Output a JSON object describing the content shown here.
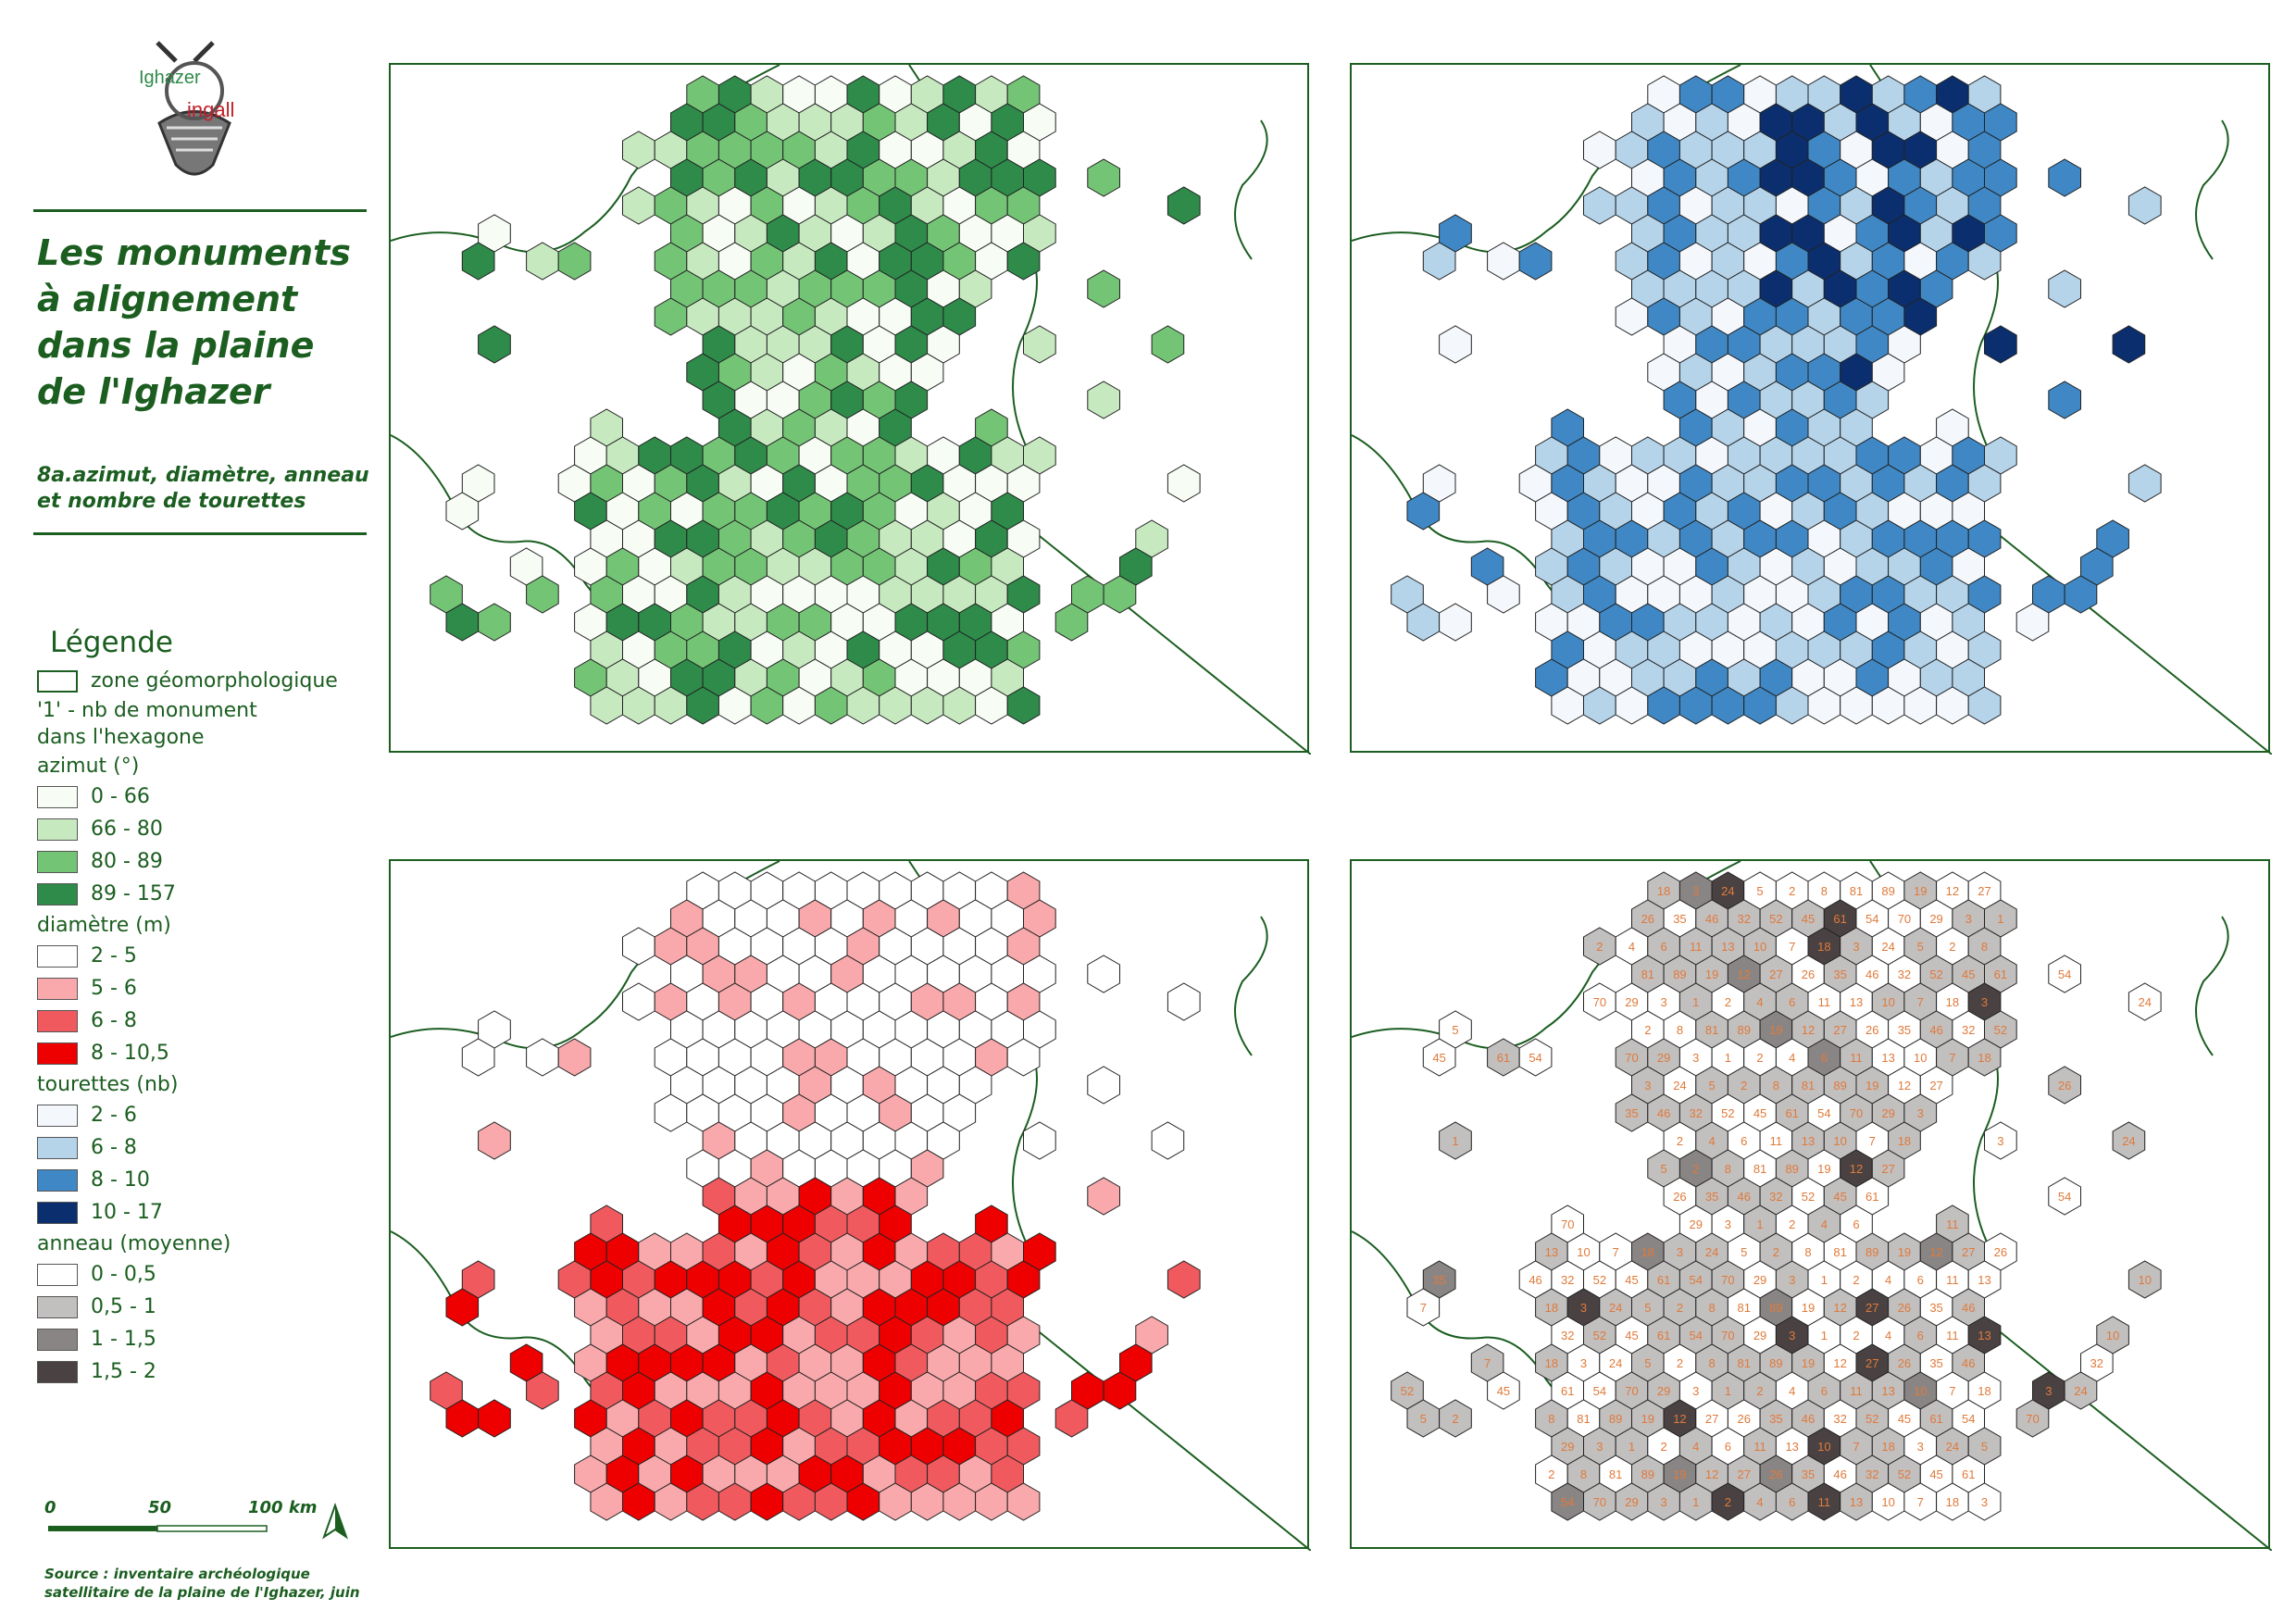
{
  "logo": {
    "word_top": "Ighazer",
    "word_bottom": "ingall"
  },
  "title": "Les monuments à alignement dans la plaine de l'Ighazer",
  "subtitle": "8a.azimut, diamètre, anneau et nombre de tourettes",
  "legend": {
    "heading": "Légende",
    "zone_label": "zone géomorphologique",
    "count_note": "'1' - nb de monument dans l'hexagone",
    "groups": [
      {
        "title": "azimut (°)",
        "classes": [
          {
            "label": "0 - 66",
            "color": "#f7fcf5"
          },
          {
            "label": "66 - 80",
            "color": "#c7e9c0"
          },
          {
            "label": "80 - 89",
            "color": "#74c476"
          },
          {
            "label": "89 - 157",
            "color": "#2e8b4a"
          }
        ]
      },
      {
        "title": "diamètre (m)",
        "classes": [
          {
            "label": "2 - 5",
            "color": "#ffffff"
          },
          {
            "label": "5 - 6",
            "color": "#f9a9ab"
          },
          {
            "label": "6 - 8",
            "color": "#f05a5e"
          },
          {
            "label": "8 - 10,5",
            "color": "#ee0000"
          }
        ]
      },
      {
        "title": "tourettes (nb)",
        "classes": [
          {
            "label": "2 - 6",
            "color": "#f4f8fd"
          },
          {
            "label": "6 - 8",
            "color": "#b5d4ea"
          },
          {
            "label": "8 - 10",
            "color": "#3f88c5"
          },
          {
            "label": "10 - 17",
            "color": "#0b2f6e"
          }
        ]
      },
      {
        "title": "anneau (moyenne)",
        "classes": [
          {
            "label": "0 - 0,5",
            "color": "#ffffff"
          },
          {
            "label": "0,5 - 1",
            "color": "#c2bfbf"
          },
          {
            "label": "1 - 1,5",
            "color": "#8a8585"
          },
          {
            "label": "1,5 - 2",
            "color": "#4a4242"
          }
        ]
      }
    ]
  },
  "scale_bar": {
    "labels": [
      "0",
      "50",
      "100 km"
    ]
  },
  "north_arrow": "north-arrow-icon",
  "source": "Source : inventaire archéologique satellitaire de la plaine de l'Ighazer, juin",
  "zone_line_color": "#1b5e20",
  "map_panels": [
    {
      "name": "azimut",
      "palette": [
        "#f7fcf5",
        "#c7e9c0",
        "#74c476",
        "#2e8b4a"
      ]
    },
    {
      "name": "tourettes",
      "palette": [
        "#f4f8fd",
        "#b5d4ea",
        "#3f88c5",
        "#0b2f6e"
      ]
    },
    {
      "name": "diametre",
      "palette": [
        "#ffffff",
        "#f9a9ab",
        "#f05a5e",
        "#ee0000"
      ]
    },
    {
      "name": "anneau",
      "palette": [
        "#ffffff",
        "#c2bfbf",
        "#8a8585",
        "#4a4242"
      ],
      "count_color": "#e07a3a",
      "counts_sample": [
        "18",
        "3",
        "24",
        "5",
        "2",
        "8",
        "81",
        "89",
        "19",
        "12",
        "27",
        "26",
        "35",
        "46",
        "32",
        "52",
        "45",
        "61",
        "54",
        "70",
        "29",
        "3",
        "1",
        "2",
        "4",
        "6",
        "11",
        "13",
        "10",
        "7"
      ]
    }
  ]
}
